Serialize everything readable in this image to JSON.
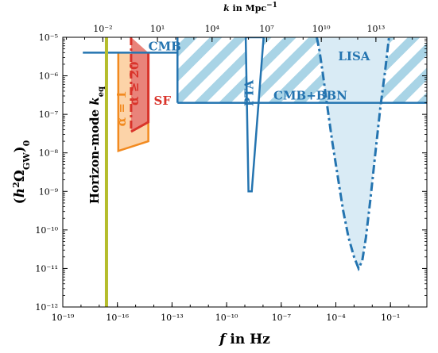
{
  "chart_data": {
    "type": "area",
    "title": "",
    "xlabel": "f in Hz",
    "ylabel": "(h²Ω_GW)₀",
    "top_xlabel": "k in Mpc⁻¹",
    "xscale": "log",
    "yscale": "log",
    "x_exponent_range": [
      -19,
      1
    ],
    "y_exponent_range": [
      -12,
      -5
    ],
    "grid": false,
    "x_ticks": [
      {
        "exp": -19,
        "label": "10⁻¹⁹"
      },
      {
        "exp": -16,
        "label": "10⁻¹⁶"
      },
      {
        "exp": -13,
        "label": "10⁻¹³"
      },
      {
        "exp": -10,
        "label": "10⁻¹⁰"
      },
      {
        "exp": -7,
        "label": "10⁻⁷"
      },
      {
        "exp": -4,
        "label": "10⁻⁴"
      },
      {
        "exp": -1,
        "label": "10⁻¹"
      }
    ],
    "top_x_ticks": [
      {
        "f_exp": -16.8,
        "label": "10⁻²"
      },
      {
        "f_exp": -13.8,
        "label": "10¹"
      },
      {
        "f_exp": -10.8,
        "label": "10⁴"
      },
      {
        "f_exp": -7.8,
        "label": "10⁷"
      },
      {
        "f_exp": -4.8,
        "label": "10¹⁰"
      },
      {
        "f_exp": -1.8,
        "label": "10¹³"
      }
    ],
    "y_ticks": [
      {
        "exp": -12,
        "label": "10⁻¹²"
      },
      {
        "exp": -11,
        "label": "10⁻¹¹"
      },
      {
        "exp": -10,
        "label": "10⁻¹⁰"
      },
      {
        "exp": -9,
        "label": "10⁻⁹"
      },
      {
        "exp": -8,
        "label": "10⁻⁸"
      },
      {
        "exp": -7,
        "label": "10⁻⁷"
      },
      {
        "exp": -6,
        "label": "10⁻⁶"
      },
      {
        "exp": -5,
        "label": "10⁻⁵"
      }
    ],
    "series": [
      {
        "key": "horizon",
        "name": "Horizon-mode k_eq",
        "label_main": "Horizon-mode ",
        "label_k": "k",
        "label_sub": "eq",
        "color": "#b5bd2c",
        "x_exp": -16.6
      },
      {
        "key": "cmb",
        "name": "CMB",
        "label": "CMB",
        "color": "#2474b0",
        "x_range_exp": [
          -17.9,
          -12.7
        ],
        "y_exp": -5.4
      },
      {
        "key": "cmb_bbn",
        "name": "CMB+BBN",
        "label": "CMB+BBN",
        "color": "#2474b0",
        "hatch_color": "#a9d4e6",
        "x_range_exp": [
          -12.7,
          1.0
        ],
        "y_exp": -6.7
      },
      {
        "key": "pta",
        "name": "PTA",
        "label": "PTA",
        "color": "#2474b0",
        "polygon_exp": [
          [
            -8.95,
            -5
          ],
          [
            -8.8,
            -9
          ],
          [
            -8.62,
            -9
          ],
          [
            -7.97,
            -5
          ]
        ]
      },
      {
        "key": "lisa",
        "name": "LISA",
        "label": "LISA",
        "color": "#2474b0",
        "fill": "#d9ebf5",
        "curve_exp": [
          [
            -5.05,
            -5.0
          ],
          [
            -4.9,
            -5.35
          ],
          [
            -4.7,
            -6.0
          ],
          [
            -4.5,
            -6.7
          ],
          [
            -4.2,
            -7.7
          ],
          [
            -3.9,
            -8.6
          ],
          [
            -3.6,
            -9.5
          ],
          [
            -3.3,
            -10.2
          ],
          [
            -3.0,
            -10.7
          ],
          [
            -2.75,
            -11.0
          ],
          [
            -2.55,
            -10.8
          ],
          [
            -2.35,
            -10.2
          ],
          [
            -2.1,
            -9.2
          ],
          [
            -1.85,
            -8.1
          ],
          [
            -1.55,
            -6.8
          ],
          [
            -1.3,
            -5.9
          ],
          [
            -1.08,
            -5.0
          ]
        ]
      },
      {
        "key": "alpha1",
        "name": "α = 1",
        "label": "α = 1",
        "color": "#f28a20",
        "fill": "#fcd3a8",
        "polygon_exp": [
          [
            -15.95,
            -5.4
          ],
          [
            -15.95,
            -7.95
          ],
          [
            -14.3,
            -7.7
          ],
          [
            -14.3,
            -5.4
          ]
        ]
      },
      {
        "key": "alpha20",
        "name": "α ≥ 20",
        "label": "α ≥ 20",
        "color": "#d9332a",
        "fill": "#e9837a",
        "polygon_exp": [
          [
            -15.25,
            -5.0
          ],
          [
            -15.25,
            -7.45
          ],
          [
            -14.3,
            -7.2
          ],
          [
            -14.3,
            -5.4
          ]
        ]
      },
      {
        "key": "sf",
        "name": "SF",
        "label": "SF",
        "color": "#d9332a"
      }
    ]
  }
}
